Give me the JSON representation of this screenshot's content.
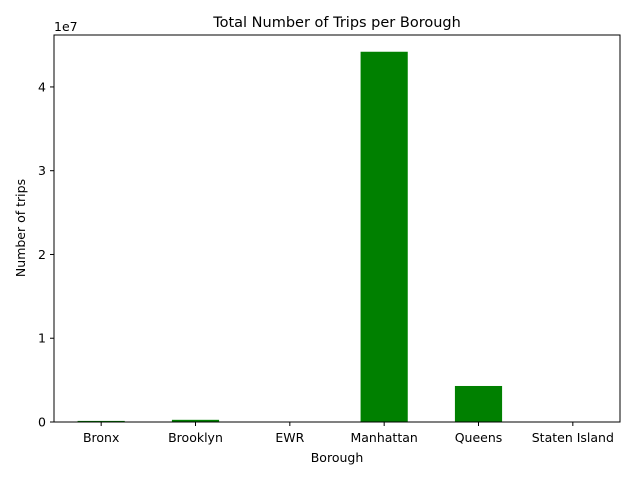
{
  "chart_data": {
    "type": "bar",
    "title": "Total Number of Trips per Borough",
    "xlabel": "Borough",
    "ylabel": "Number of trips",
    "categories": [
      "Bronx",
      "Brooklyn",
      "EWR",
      "Manhattan",
      "Queens",
      "Staten Island"
    ],
    "values": [
      130000,
      260000,
      2000,
      44200000,
      4300000,
      5000
    ],
    "ylim": [
      0,
      46200000
    ],
    "yticks": [
      0,
      10000000,
      20000000,
      30000000,
      40000000
    ],
    "ytick_labels": [
      "0",
      "1",
      "2",
      "3",
      "4"
    ],
    "y_offset_label": "1e7",
    "bar_color": "#008000",
    "grid": false,
    "legend": "none"
  }
}
